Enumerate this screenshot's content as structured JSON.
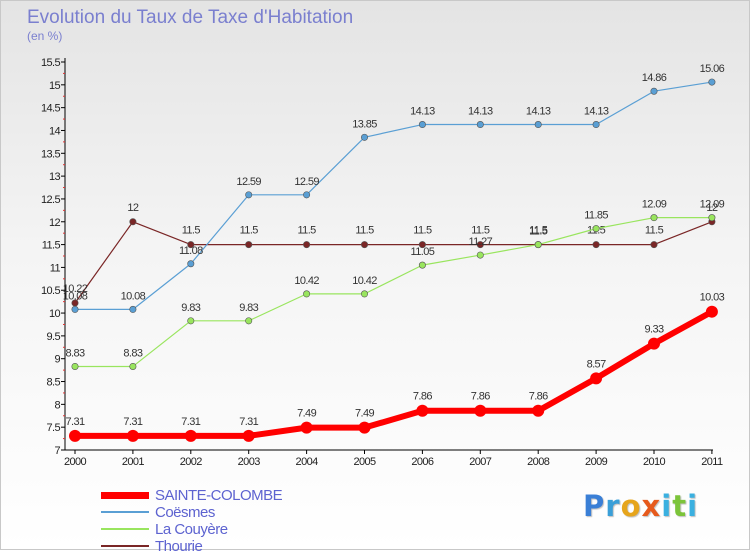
{
  "chart_data": {
    "type": "line",
    "title": "Evolution du Taux de Taxe d'Habitation",
    "subtitle": "(en %)",
    "x": [
      "2000",
      "2001",
      "2002",
      "2003",
      "2004",
      "2005",
      "2006",
      "2007",
      "2008",
      "2009",
      "2010",
      "2011"
    ],
    "ylim": [
      7,
      15.5
    ],
    "y_ticks": [
      "7",
      "7.5",
      "8",
      "8.5",
      "9",
      "9.5",
      "10",
      "10.5",
      "11",
      "11.5",
      "12",
      "12.5",
      "13",
      "13.5",
      "14",
      "14.5",
      "15",
      "15.5"
    ],
    "grid": false,
    "legend_position": "bottom-left",
    "series": [
      {
        "name": "SAINTE-COLOMBE",
        "color": "#ff0000",
        "values": [
          7.31,
          7.31,
          7.31,
          7.31,
          7.49,
          7.49,
          7.86,
          7.86,
          7.86,
          8.57,
          9.33,
          10.03
        ],
        "labels": [
          "7.31",
          "7.31",
          "7.31",
          "7.31",
          "7.49",
          "7.49",
          "7.86",
          "7.86",
          "7.86",
          "8.57",
          "9.33",
          "10.03"
        ]
      },
      {
        "name": "Coësmes",
        "color": "#5a9fd4",
        "values": [
          10.08,
          10.08,
          11.08,
          12.59,
          12.59,
          13.85,
          14.13,
          14.13,
          14.13,
          14.13,
          14.86,
          15.06
        ],
        "labels": [
          "10.08",
          "10.08",
          "11.08",
          "12.59",
          "12.59",
          "13.85",
          "14.13",
          "14.13",
          "14.13",
          "14.13",
          "14.86",
          "15.06"
        ]
      },
      {
        "name": "La Couyère",
        "color": "#99e55e",
        "values": [
          8.83,
          8.83,
          9.83,
          9.83,
          10.42,
          10.42,
          11.05,
          11.27,
          11.5,
          11.85,
          12.09,
          12.09
        ],
        "labels": [
          "8.83",
          "8.83",
          "9.83",
          "9.83",
          "10.42",
          "10.42",
          "11.05",
          "11.27",
          "11.5",
          "11.85",
          "12.09",
          "12.09"
        ]
      },
      {
        "name": "Thourie",
        "color": "#7a2626",
        "values": [
          10.22,
          12,
          11.5,
          11.5,
          11.5,
          11.5,
          11.5,
          11.5,
          11.5,
          11.5,
          11.5,
          12
        ],
        "labels": [
          "10.22",
          "12",
          "11.5",
          "11.5",
          "11.5",
          "11.5",
          "11.5",
          "11.5",
          "11.5",
          "11.5",
          "11.5",
          "12"
        ]
      }
    ]
  },
  "brand": {
    "letters": [
      "P",
      "r",
      "o",
      "x",
      "i",
      "t",
      "i"
    ],
    "colors": [
      "#3a7fd6",
      "#3a9fd8",
      "#e6a51c",
      "#e65a1c",
      "#3ab0e0",
      "#7cc43a",
      "#3ab0e0"
    ]
  }
}
